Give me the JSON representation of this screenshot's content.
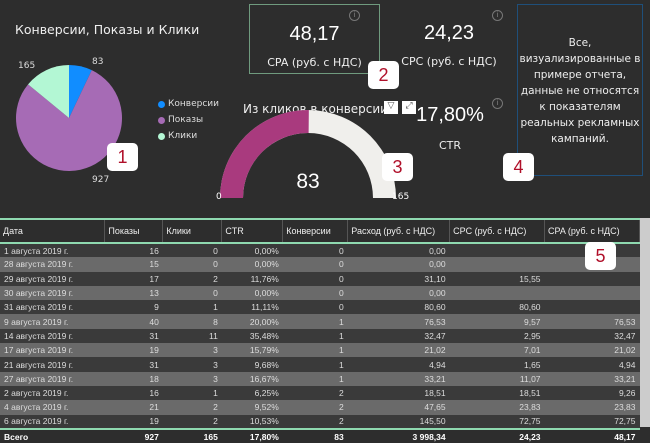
{
  "pie": {
    "title": "Конверсии, Показы и Клики",
    "slices": [
      {
        "name": "Конверсии",
        "value": 83,
        "color": "#118dff"
      },
      {
        "name": "Показы",
        "value": 927,
        "color": "#a66bb5"
      },
      {
        "name": "Клики",
        "value": 165,
        "color": "#b3f7d4"
      }
    ],
    "labels": [
      "83",
      "927",
      "165"
    ]
  },
  "kpis": {
    "cpa": {
      "value": "48,17",
      "label": "CPA (руб. с НДС)"
    },
    "cpc": {
      "value": "24,23",
      "label": "CPC (руб. с НДС)"
    },
    "ctr": {
      "value": "17,80%",
      "label": "CTR"
    }
  },
  "gauge": {
    "title": "Из кликов в конверсии",
    "value": 83,
    "min": 0,
    "max": 165,
    "value_label": "83",
    "min_label": "0",
    "max_label": "165",
    "fill_color": "#a93a7e",
    "track_color": "#f0efec"
  },
  "note": "Все, визуализированные в примере отчета, данные не относятся к показателям реальных рекламных кампаний.",
  "badges": [
    "1",
    "2",
    "3",
    "4",
    "5"
  ],
  "table": {
    "columns": [
      "Дата",
      "Показы",
      "Клики",
      "CTR",
      "Конверсии",
      "Расход (руб. с НДС)",
      "CPC (руб. с НДС)",
      "CPA (руб. с НДС)"
    ],
    "rows": [
      [
        "1 августа 2019 г.",
        "16",
        "0",
        "0,00%",
        "0",
        "0,00",
        "",
        ""
      ],
      [
        "28 августа 2019 г.",
        "15",
        "0",
        "0,00%",
        "0",
        "0,00",
        "",
        ""
      ],
      [
        "29 августа 2019 г.",
        "17",
        "2",
        "11,76%",
        "0",
        "31,10",
        "15,55",
        ""
      ],
      [
        "30 августа 2019 г.",
        "13",
        "0",
        "0,00%",
        "0",
        "0,00",
        "",
        ""
      ],
      [
        "31 августа 2019 г.",
        "9",
        "1",
        "11,11%",
        "0",
        "80,60",
        "80,60",
        ""
      ],
      [
        "9 августа 2019 г.",
        "40",
        "8",
        "20,00%",
        "1",
        "76,53",
        "9,57",
        "76,53"
      ],
      [
        "14 августа 2019 г.",
        "31",
        "11",
        "35,48%",
        "1",
        "32,47",
        "2,95",
        "32,47"
      ],
      [
        "17 августа 2019 г.",
        "19",
        "3",
        "15,79%",
        "1",
        "21,02",
        "7,01",
        "21,02"
      ],
      [
        "21 августа 2019 г.",
        "31",
        "3",
        "9,68%",
        "1",
        "4,94",
        "1,65",
        "4,94"
      ],
      [
        "27 августа 2019 г.",
        "18",
        "3",
        "16,67%",
        "1",
        "33,21",
        "11,07",
        "33,21"
      ],
      [
        "2 августа 2019 г.",
        "16",
        "1",
        "6,25%",
        "2",
        "18,51",
        "18,51",
        "9,26"
      ],
      [
        "4 августа 2019 г.",
        "21",
        "2",
        "9,52%",
        "2",
        "47,65",
        "23,83",
        "23,83"
      ],
      [
        "6 августа 2019 г.",
        "19",
        "2",
        "10,53%",
        "2",
        "145,50",
        "72,75",
        "72,75"
      ]
    ],
    "total": [
      "Всего",
      "927",
      "165",
      "17,80%",
      "83",
      "3 998,34",
      "24,23",
      "48,17"
    ]
  }
}
